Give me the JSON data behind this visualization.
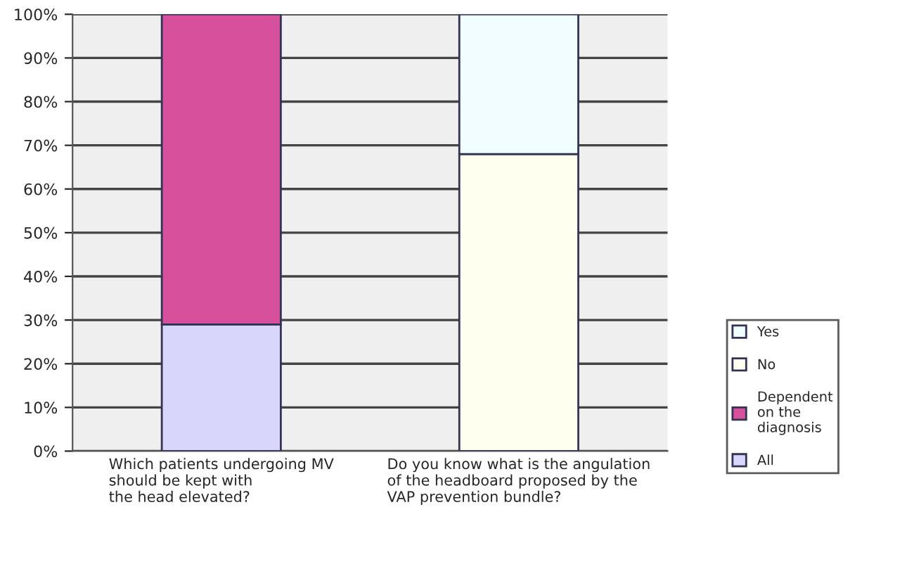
{
  "chart_data": {
    "type": "bar",
    "stacked": true,
    "categories": [
      "Which patients undergoing MV\nshould be kept with\nthe head elevated?",
      "Do you know what is the angulation\nof the headboard proposed by the\nVAP prevention bundle?"
    ],
    "series": [
      {
        "name": "All",
        "color": "#d8d6fa",
        "values": [
          29,
          null
        ]
      },
      {
        "name": "Dependent\non the\ndiagnosis",
        "color": "#d6509c",
        "values": [
          71,
          null
        ]
      },
      {
        "name": "No",
        "color": "#fffff0",
        "values": [
          null,
          68
        ]
      },
      {
        "name": "Yes",
        "color": "#f0fcfd",
        "values": [
          null,
          32
        ]
      }
    ],
    "ylim": [
      0,
      100
    ],
    "yticks": [
      {
        "value": 0,
        "label": "0%"
      },
      {
        "value": 10,
        "label": "10%"
      },
      {
        "value": 20,
        "label": "20%"
      },
      {
        "value": 30,
        "label": "30%"
      },
      {
        "value": 40,
        "label": "40%"
      },
      {
        "value": 50,
        "label": "50%"
      },
      {
        "value": 60,
        "label": "60%"
      },
      {
        "value": 70,
        "label": "70%"
      },
      {
        "value": 80,
        "label": "80%"
      },
      {
        "value": 90,
        "label": "90%"
      },
      {
        "value": 100,
        "label": "100%"
      }
    ],
    "grid": "y",
    "legend": "bottom right"
  }
}
